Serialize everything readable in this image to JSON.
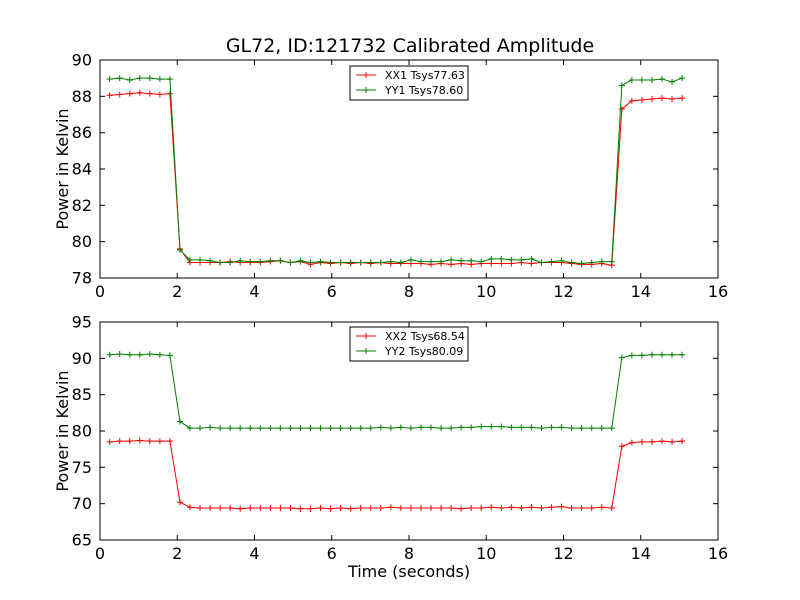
{
  "figure": {
    "title": "GL72, ID:121732 Calibrated Amplitude"
  },
  "chart_data": [
    {
      "type": "line",
      "title": "GL72, ID:121732 Calibrated Amplitude",
      "xlabel": "",
      "ylabel": "Power in Kelvin",
      "xlim": [
        0,
        16
      ],
      "ylim": [
        78,
        90
      ],
      "xticks": [
        "0",
        "2",
        "4",
        "6",
        "8",
        "10",
        "12",
        "14",
        "16"
      ],
      "yticks": [
        "78",
        "80",
        "82",
        "84",
        "86",
        "88",
        "90"
      ],
      "grid": false,
      "legend_placement": "top-center",
      "x": [
        0.25,
        0.51,
        0.77,
        1.03,
        1.29,
        1.55,
        1.81,
        2.07,
        2.33,
        2.59,
        2.85,
        3.11,
        3.37,
        3.63,
        3.89,
        4.15,
        4.41,
        4.67,
        4.93,
        5.19,
        5.45,
        5.71,
        5.97,
        6.23,
        6.49,
        6.75,
        7.01,
        7.27,
        7.53,
        7.79,
        8.05,
        8.31,
        8.57,
        8.83,
        9.09,
        9.35,
        9.61,
        9.87,
        10.13,
        10.39,
        10.65,
        10.91,
        11.17,
        11.43,
        11.69,
        11.95,
        12.21,
        12.47,
        12.73,
        12.99,
        13.25,
        13.51,
        13.77,
        14.03,
        14.29,
        14.55,
        14.81,
        15.07
      ],
      "series": [
        {
          "name": "XX1 Tsys77.63",
          "color": "#ff0000",
          "values": [
            88.05,
            88.1,
            88.15,
            88.2,
            88.15,
            88.1,
            88.15,
            79.6,
            78.85,
            78.85,
            78.85,
            78.85,
            78.9,
            78.85,
            78.85,
            78.85,
            78.9,
            78.95,
            78.85,
            78.9,
            78.75,
            78.85,
            78.8,
            78.85,
            78.8,
            78.85,
            78.8,
            78.85,
            78.8,
            78.8,
            78.8,
            78.8,
            78.75,
            78.8,
            78.75,
            78.8,
            78.75,
            78.8,
            78.8,
            78.8,
            78.8,
            78.85,
            78.8,
            78.85,
            78.85,
            78.85,
            78.8,
            78.75,
            78.75,
            78.8,
            78.7,
            87.3,
            87.75,
            87.8,
            87.85,
            87.9,
            87.85,
            87.9
          ]
        },
        {
          "name": "YY1 Tsys78.60",
          "color": "#008000",
          "values": [
            88.95,
            89.0,
            88.9,
            89.0,
            89.0,
            88.95,
            88.95,
            79.55,
            79.0,
            79.0,
            78.95,
            78.85,
            78.85,
            78.95,
            78.9,
            78.9,
            78.95,
            78.95,
            78.85,
            78.95,
            78.85,
            78.9,
            78.85,
            78.85,
            78.85,
            78.85,
            78.85,
            78.85,
            78.9,
            78.85,
            79.0,
            78.9,
            78.9,
            78.9,
            79.0,
            78.95,
            78.95,
            78.9,
            79.05,
            79.05,
            79.0,
            79.0,
            79.05,
            78.85,
            78.9,
            78.95,
            78.85,
            78.8,
            78.85,
            78.9,
            78.9,
            88.6,
            88.9,
            88.9,
            88.9,
            88.95,
            88.8,
            89.0
          ]
        }
      ]
    },
    {
      "type": "line",
      "title": "",
      "xlabel": "Time (seconds)",
      "ylabel": "Power in Kelvin",
      "xlim": [
        0,
        16
      ],
      "ylim": [
        65,
        95
      ],
      "xticks": [
        "0",
        "2",
        "4",
        "6",
        "8",
        "10",
        "12",
        "14",
        "16"
      ],
      "yticks": [
        "65",
        "70",
        "75",
        "80",
        "85",
        "90",
        "95"
      ],
      "grid": false,
      "legend_placement": "top-center",
      "x": [
        0.25,
        0.51,
        0.77,
        1.03,
        1.29,
        1.55,
        1.81,
        2.07,
        2.33,
        2.59,
        2.85,
        3.11,
        3.37,
        3.63,
        3.89,
        4.15,
        4.41,
        4.67,
        4.93,
        5.19,
        5.45,
        5.71,
        5.97,
        6.23,
        6.49,
        6.75,
        7.01,
        7.27,
        7.53,
        7.79,
        8.05,
        8.31,
        8.57,
        8.83,
        9.09,
        9.35,
        9.61,
        9.87,
        10.13,
        10.39,
        10.65,
        10.91,
        11.17,
        11.43,
        11.69,
        11.95,
        12.21,
        12.47,
        12.73,
        12.99,
        13.25,
        13.51,
        13.77,
        14.03,
        14.29,
        14.55,
        14.81,
        15.07
      ],
      "series": [
        {
          "name": "XX2 Tsys68.54",
          "color": "#ff0000",
          "values": [
            78.5,
            78.6,
            78.6,
            78.7,
            78.6,
            78.6,
            78.6,
            70.2,
            69.5,
            69.4,
            69.4,
            69.4,
            69.4,
            69.3,
            69.4,
            69.4,
            69.4,
            69.4,
            69.4,
            69.3,
            69.3,
            69.4,
            69.3,
            69.4,
            69.3,
            69.4,
            69.4,
            69.4,
            69.5,
            69.4,
            69.4,
            69.4,
            69.4,
            69.4,
            69.4,
            69.3,
            69.4,
            69.4,
            69.5,
            69.4,
            69.5,
            69.4,
            69.5,
            69.4,
            69.5,
            69.6,
            69.4,
            69.4,
            69.4,
            69.5,
            69.4,
            77.9,
            78.4,
            78.5,
            78.5,
            78.6,
            78.5,
            78.6
          ]
        },
        {
          "name": "YY2 Tsys80.09",
          "color": "#008000",
          "values": [
            90.5,
            90.6,
            90.5,
            90.5,
            90.6,
            90.5,
            90.4,
            81.3,
            80.4,
            80.4,
            80.5,
            80.4,
            80.4,
            80.4,
            80.4,
            80.4,
            80.4,
            80.4,
            80.4,
            80.4,
            80.4,
            80.4,
            80.4,
            80.4,
            80.4,
            80.4,
            80.4,
            80.5,
            80.4,
            80.5,
            80.4,
            80.5,
            80.5,
            80.4,
            80.4,
            80.5,
            80.5,
            80.6,
            80.6,
            80.6,
            80.5,
            80.5,
            80.5,
            80.4,
            80.5,
            80.5,
            80.4,
            80.4,
            80.4,
            80.4,
            80.4,
            90.1,
            90.4,
            90.4,
            90.5,
            90.5,
            90.5,
            90.5
          ]
        }
      ]
    }
  ]
}
